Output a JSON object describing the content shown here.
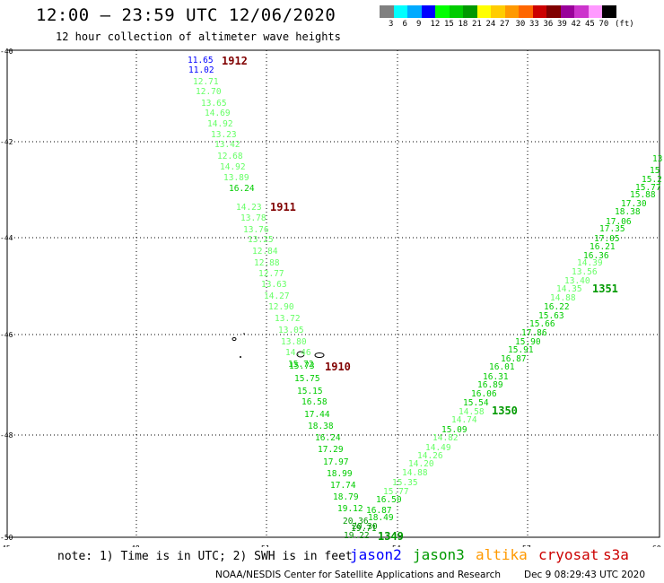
{
  "header": {
    "title": "12:00 – 23:59 UTC 12/06/2020",
    "subtitle": "12 hour collection of altimeter wave heights"
  },
  "legend": {
    "colors": [
      "#808080",
      "#00ffff",
      "#00aaff",
      "#0000ff",
      "#00ff00",
      "#00cc00",
      "#009900",
      "#ffff00",
      "#ffcc00",
      "#ff9900",
      "#ff6600",
      "#cc0000",
      "#800000",
      "#990099",
      "#cc33cc",
      "#ff99ff",
      "#000000"
    ],
    "labels": [
      "3",
      "6",
      "9",
      "12",
      "15",
      "18",
      "21",
      "24",
      "27",
      "30",
      "33",
      "36",
      "39",
      "42",
      "45",
      "70",
      "(ft)"
    ]
  },
  "axes": {
    "lon_labels": [
      "45",
      "48",
      "51",
      "54",
      "57",
      "60"
    ],
    "lat_labels": [
      "-40",
      "-42",
      "-44",
      "-46",
      "-48",
      "-50"
    ]
  },
  "tracks": {
    "track_1912": {
      "id_label": "1912",
      "id_color": "#800000",
      "values": [
        "11.65",
        "11.02",
        "12.71",
        "12.70",
        "13.65",
        "14.69",
        "14.92",
        "13.23",
        "13.42",
        "12.68",
        "14.92",
        "13.89",
        "16.24",
        "14.23",
        "13.78",
        "13.76",
        "13.25",
        "12.84",
        "12.88",
        "12.77",
        "13.63",
        "14.27",
        "12.90",
        "13.72",
        "13.05",
        "13.80",
        "14.46",
        "15.72",
        "15.73",
        "15.75",
        "15.15",
        "16.58",
        "17.44",
        "18.38",
        "16.24",
        "17.29",
        "17.97",
        "18.99",
        "17.74",
        "18.79",
        "19.12",
        "20.36",
        "18.49",
        "19.71",
        "20.30",
        "19.22"
      ],
      "colors": [
        "#0000ff",
        "#0000ff",
        "#66ff66",
        "#66ff66",
        "#66ff66",
        "#66ff66",
        "#66ff66",
        "#66ff66",
        "#66ff66",
        "#66ff66",
        "#66ff66",
        "#66ff66",
        "#00cc00",
        "#66ff66",
        "#66ff66",
        "#66ff66",
        "#66ff66",
        "#66ff66",
        "#66ff66",
        "#66ff66",
        "#66ff66",
        "#66ff66",
        "#66ff66",
        "#66ff66",
        "#66ff66",
        "#66ff66",
        "#66ff66",
        "#00cc00",
        "#00cc00",
        "#00cc00",
        "#00cc00",
        "#00cc00",
        "#00cc00",
        "#00cc00",
        "#00cc00",
        "#00cc00",
        "#00cc00",
        "#00cc00",
        "#00cc00",
        "#00cc00",
        "#00cc00",
        "#009900",
        "#00cc00",
        "#009900",
        "#009900",
        "#009900"
      ]
    },
    "track_1911": {
      "id_label": "1911",
      "id_color": "#800000"
    },
    "track_1910": {
      "id_label": "1910",
      "id_color": "#800000"
    },
    "track_1349": {
      "id_label": "1349",
      "id_color": "#009900"
    },
    "track_1350": {
      "id_label": "1350",
      "id_color": "#009900"
    },
    "track_1351": {
      "id_label": "1351",
      "id_color": "#009900",
      "values": [
        "16.87",
        "16.50",
        "15.77",
        "15.35",
        "14.88",
        "14.20",
        "14.26",
        "14.49",
        "14.82",
        "15.09",
        "14.74",
        "14.58",
        "15.54",
        "16.06",
        "16.89",
        "16.31",
        "16.01",
        "16.87",
        "15.91",
        "15.90",
        "17.86",
        "15.66",
        "15.63",
        "16.22",
        "14.88",
        "14.35",
        "13.40",
        "13.56",
        "14.39",
        "16.36",
        "16.21",
        "17.05",
        "17.35",
        "17.06",
        "18.38",
        "17.30",
        "15.88",
        "15.77",
        "15.2",
        "15",
        "13"
      ],
      "colors": [
        "#00cc00",
        "#00cc00",
        "#66ff66",
        "#66ff66",
        "#66ff66",
        "#66ff66",
        "#66ff66",
        "#66ff66",
        "#66ff66",
        "#00cc00",
        "#66ff66",
        "#66ff66",
        "#00cc00",
        "#00cc00",
        "#00cc00",
        "#00cc00",
        "#00cc00",
        "#00cc00",
        "#00cc00",
        "#00cc00",
        "#00cc00",
        "#00cc00",
        "#00cc00",
        "#00cc00",
        "#66ff66",
        "#66ff66",
        "#66ff66",
        "#66ff66",
        "#66ff66",
        "#00cc00",
        "#00cc00",
        "#00cc00",
        "#00cc00",
        "#00cc00",
        "#00cc00",
        "#00cc00",
        "#00cc00",
        "#00cc00",
        "#00cc00",
        "#00cc00",
        "#00cc00"
      ]
    }
  },
  "note": "note:  1) Time is in UTC; 2) SWH is in feet",
  "satellites": [
    {
      "name": "jason2",
      "color": "#0000ff"
    },
    {
      "name": "jason3",
      "color": "#009900"
    },
    {
      "name": "altika",
      "color": "#ff9900"
    },
    {
      "name": "cryosat",
      "color": "#cc0000"
    },
    {
      "name": "s3a",
      "color": "#cc0000"
    }
  ],
  "footer": {
    "credit": "NOAA/NESDIS Center for Satellite Applications and Research",
    "timestamp": "Dec  9 08:29:43 UTC 2020"
  }
}
